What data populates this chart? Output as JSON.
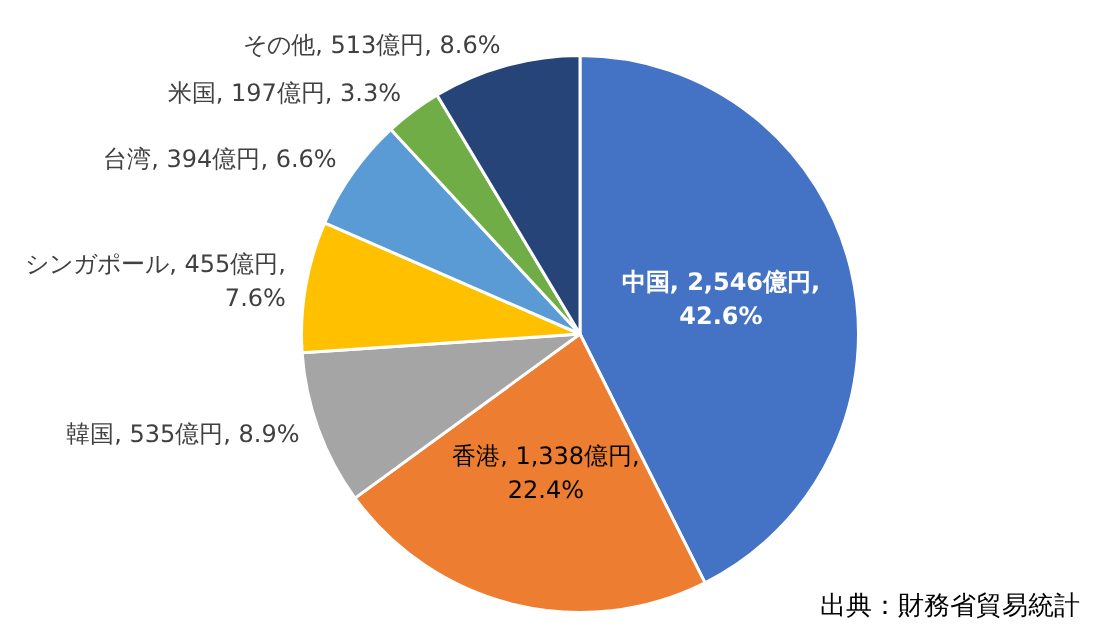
{
  "chart_data": {
    "type": "pie",
    "categories": [
      "中国",
      "香港",
      "韓国",
      "シンガポール",
      "台湾",
      "米国",
      "その他"
    ],
    "values": [
      2546,
      1338,
      535,
      455,
      394,
      197,
      513
    ],
    "value_labels": [
      "2,546億円, 42.6%",
      "1,338億円, 22.4%",
      "535億円, 8.9%",
      "455億円, 7.6%",
      "394億円, 6.6%",
      "197億円, 3.3%",
      "513億円, 8.6%"
    ],
    "colors": [
      "#4472c4",
      "#ed7d31",
      "#a5a5a5",
      "#ffc000",
      "#5b9bd5",
      "#70ad47",
      "#264478"
    ],
    "legend": false,
    "annotations": [
      "出典：財務省貿易統計"
    ]
  }
}
